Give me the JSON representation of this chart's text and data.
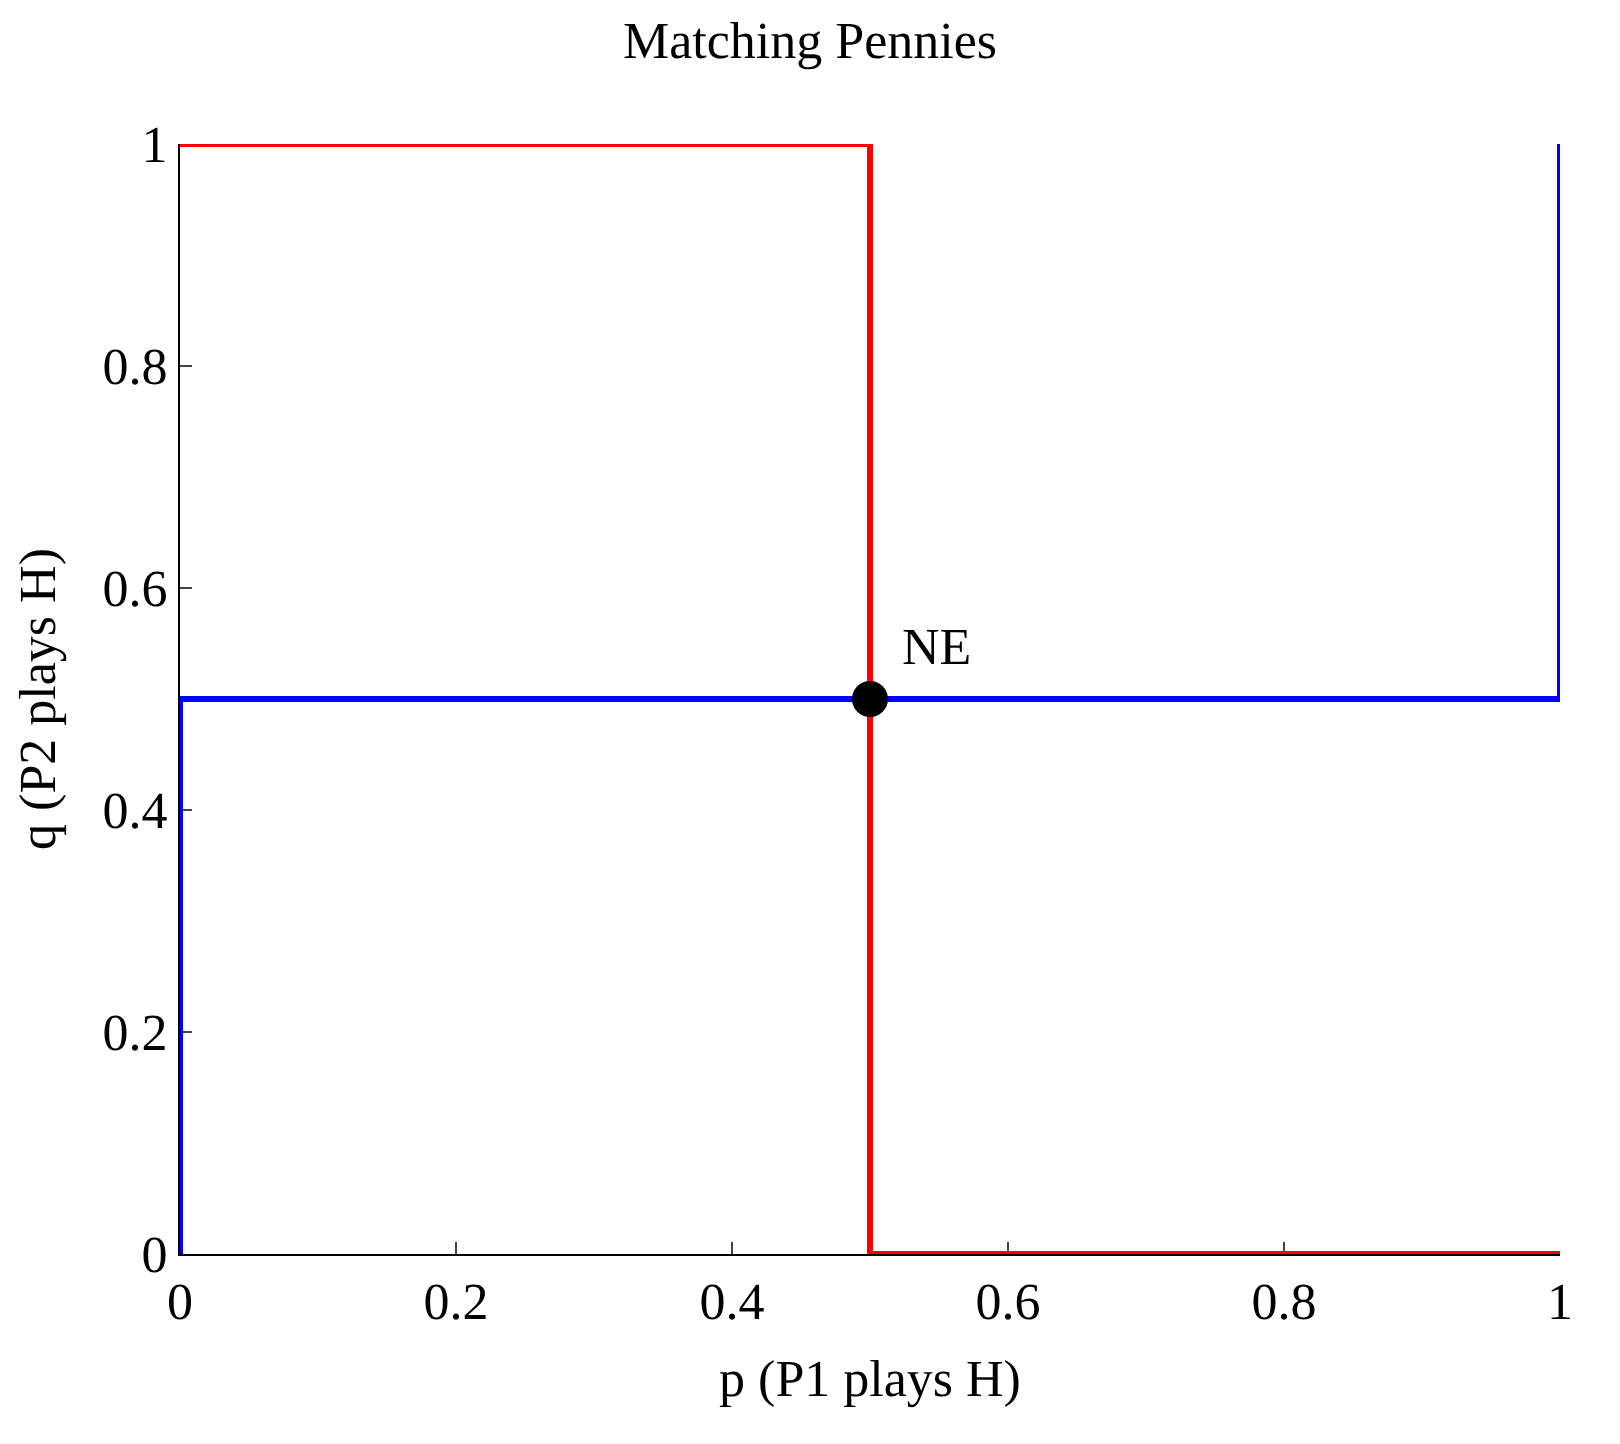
{
  "chart_data": {
    "type": "line",
    "title": "Matching Pennies",
    "xlabel": "p (P1 plays H)",
    "ylabel": "q (P2 plays H)",
    "series": [
      {
        "color": "#ff0000",
        "x": [
          0,
          0.5,
          0.5,
          1
        ],
        "values": [
          1,
          1,
          0,
          0
        ]
      },
      {
        "color": "#0000ff",
        "x": [
          0,
          0,
          1,
          1
        ],
        "values": [
          0,
          0.5,
          0.5,
          1
        ]
      },
      {
        "type": "scatter",
        "color": "#000000",
        "x": [
          0.5
        ],
        "values": [
          0.5
        ],
        "marker": "circle"
      }
    ],
    "annotations": [
      {
        "text": "NE",
        "x": 0.5,
        "y": 0.5
      }
    ],
    "xlim": [
      0,
      1
    ],
    "ylim": [
      0,
      1
    ],
    "xticks": [
      0,
      0.2,
      0.4,
      0.6,
      0.8,
      1
    ],
    "yticks": [
      0,
      0.2,
      0.4,
      0.6,
      0.8,
      1
    ]
  }
}
